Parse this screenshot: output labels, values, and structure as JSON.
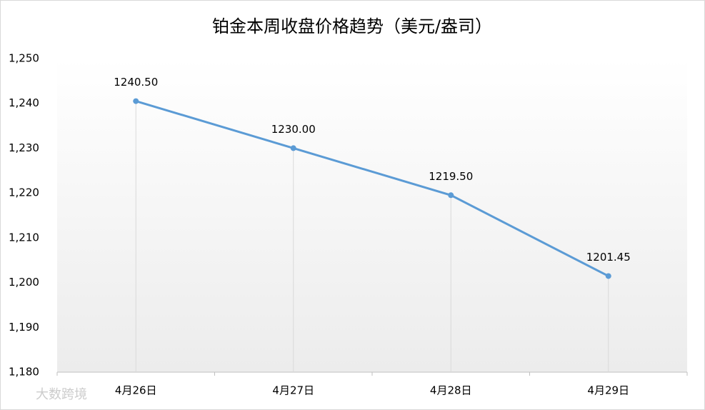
{
  "chart_data": {
    "type": "line",
    "title": "铂金本周收盘价格趋势（美元/盎司）",
    "categories": [
      "4月26日",
      "4月27日",
      "4月28日",
      "4月29日"
    ],
    "series": [
      {
        "color": "#5b9bd5",
        "values": [
          1240.5,
          1230,
          1219.5,
          1201.45
        ],
        "value_labels": [
          "1240.50",
          "1230.00",
          "1219.50",
          "1201.45"
        ]
      }
    ],
    "ylim": [
      1180,
      1250
    ],
    "yticks": [
      {
        "value": 1180,
        "label": "1,180"
      },
      {
        "value": 1190,
        "label": "1,190"
      },
      {
        "value": 1200,
        "label": "1,200"
      },
      {
        "value": 1210,
        "label": "1,210"
      },
      {
        "value": 1220,
        "label": "1,220"
      },
      {
        "value": 1230,
        "label": "1,230"
      },
      {
        "value": 1240,
        "label": "1,240"
      },
      {
        "value": 1250,
        "label": "1,250"
      }
    ],
    "drop_lines": true,
    "watermark": "大数跨境"
  }
}
